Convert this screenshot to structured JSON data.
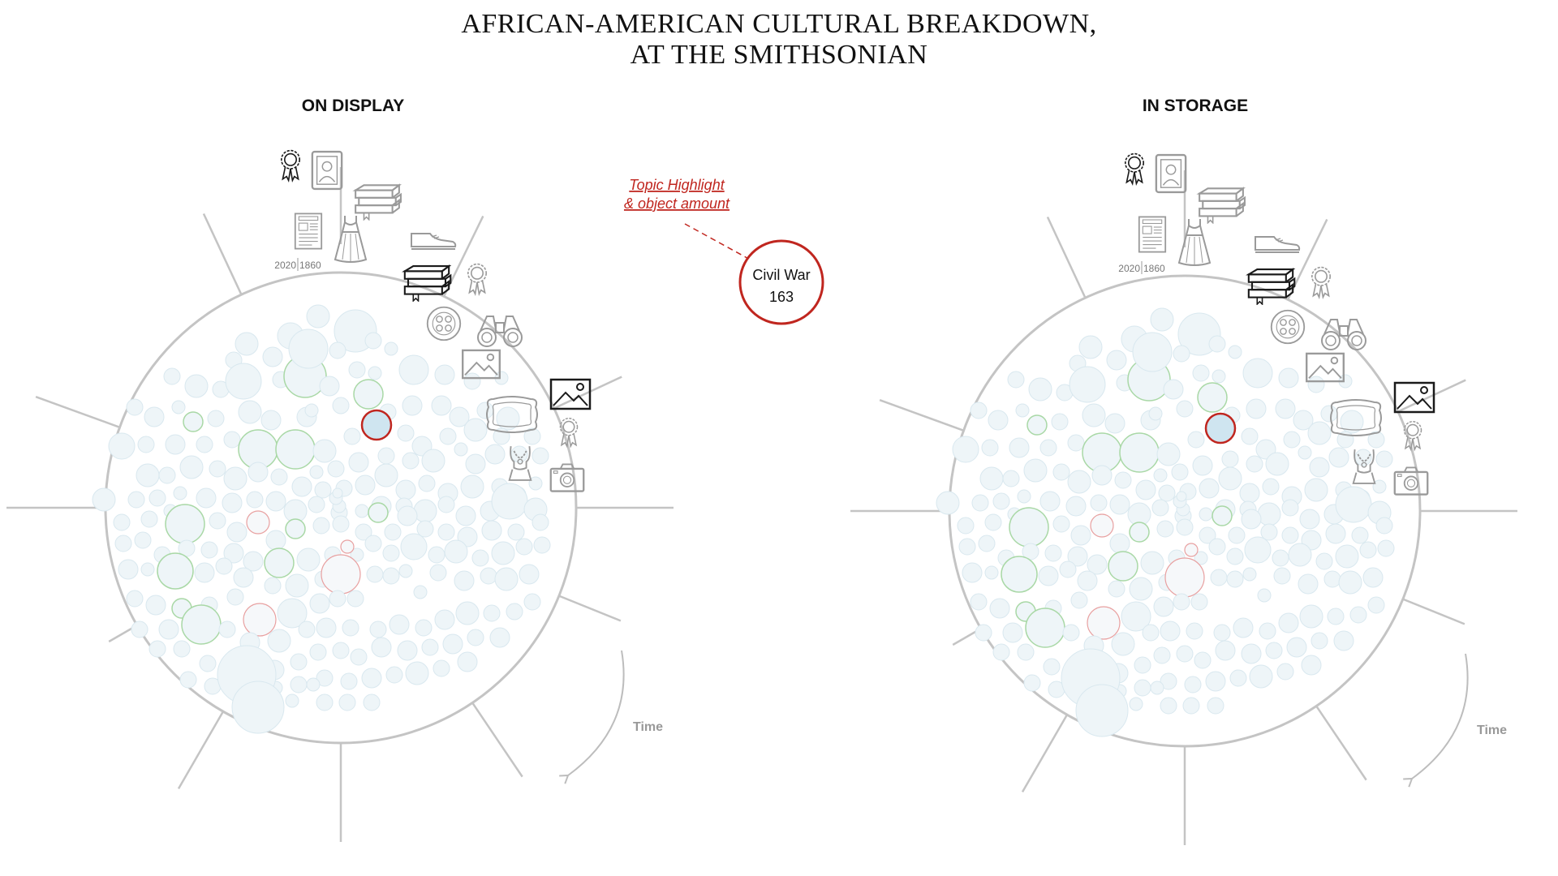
{
  "title": {
    "line1": "AFRICAN-AMERICAN CULTURAL BREAKDOWN,",
    "line2": "AT THE SMITHSONIAN"
  },
  "panels": [
    {
      "id": "display",
      "label": "ON DISPLAY",
      "year_start": "2020",
      "year_end": "1860",
      "time_label": "Time"
    },
    {
      "id": "storage",
      "label": "IN STORAGE",
      "year_start": "2020",
      "year_end": "1860",
      "time_label": "Time"
    }
  ],
  "callout": {
    "label_line1": "Topic Highlight",
    "label_line2": "& object amount",
    "topic": "Civil War",
    "amount": "163"
  },
  "colors": {
    "bubble_fill": "#eef5f8",
    "bubble_stroke": "#d9e8ef",
    "green_stroke": "#a9d8a6",
    "red_stroke": "#e8a0a0",
    "highlight_fill": "#cfe5f0",
    "highlight_stroke": "#c0261f",
    "spoke": "#c4c4c4",
    "accent_red": "#c0261f"
  },
  "icons": [
    "award-ribbon-icon",
    "portrait-frame-icon",
    "books-icon",
    "newspaper-icon",
    "dress-icon",
    "shoe-icon",
    "books-icon",
    "award-ribbon-icon",
    "buttons-icon",
    "binoculars-icon",
    "picture-icon",
    "picture-icon",
    "label-frame-icon",
    "award-ribbon-icon",
    "necklace-icon",
    "camera-icon"
  ]
}
